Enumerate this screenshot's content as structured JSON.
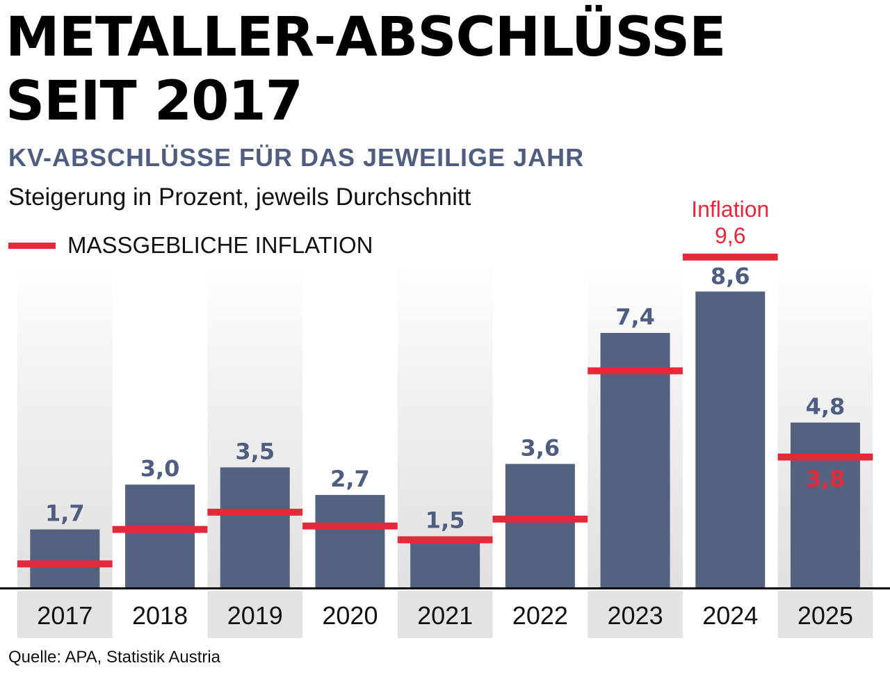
{
  "title_lines": [
    "METALLER-ABSCHLÜSSE",
    "SEIT 2017"
  ],
  "subtitle": "KV-ABSCHLÜSSE FÜR DAS JEWEILIGE JAHR",
  "description": "Steigerung in Prozent, jeweils Durchschnitt",
  "legend": {
    "inflation": "MASSGEBLICHE INFLATION"
  },
  "source": "Quelle: APA, Statistik Austria",
  "colors": {
    "bar": "#53627f",
    "inflation": "#e22a3a",
    "band": "#e3e3e3",
    "text_value": "#4f5e80"
  },
  "chart_data": {
    "type": "bar",
    "categories": [
      "2017",
      "2018",
      "2019",
      "2020",
      "2021",
      "2022",
      "2023",
      "2024",
      "2025"
    ],
    "series": [
      {
        "name": "KV-Abschluss",
        "values": [
          1.7,
          3.0,
          3.5,
          2.7,
          1.5,
          3.6,
          7.4,
          8.6,
          4.8
        ],
        "labels": [
          "1,7",
          "3,0",
          "3,5",
          "2,7",
          "1,5",
          "3,6",
          "7,4",
          "8,6",
          "4,8"
        ]
      },
      {
        "name": "MASSGEBLICHE INFLATION",
        "values": [
          0.7,
          1.7,
          2.2,
          1.8,
          1.4,
          2.0,
          6.3,
          9.6,
          3.8
        ]
      }
    ],
    "annotations": [
      {
        "category": "2024",
        "text": "Inflation",
        "value_text": "9,6"
      },
      {
        "category": "2025",
        "value_text": "3,8"
      }
    ],
    "ylim": [
      0,
      9.6
    ],
    "grid": false
  }
}
